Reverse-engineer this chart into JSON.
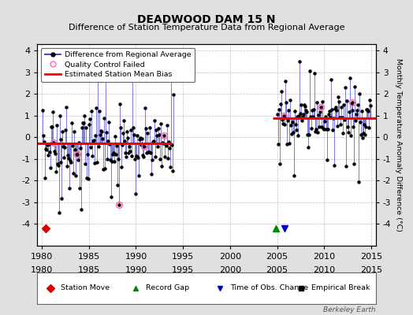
{
  "title": "DEADWOOD DAM 15 N",
  "subtitle": "Difference of Station Temperature Data from Regional Average",
  "ylabel_right": "Monthly Temperature Anomaly Difference (°C)",
  "xlim": [
    1979.5,
    2015.5
  ],
  "ylim": [
    -5.0,
    4.3
  ],
  "yticks": [
    -4,
    -3,
    -2,
    -1,
    0,
    1,
    2,
    3,
    4
  ],
  "xticks": [
    1980,
    1985,
    1990,
    1995,
    2000,
    2005,
    2010,
    2015
  ],
  "bias1_x_start": 1979.5,
  "bias1_x_end": 1993.8,
  "bias1_y": -0.28,
  "bias2_x_start": 2004.5,
  "bias2_x_end": 2015.5,
  "bias2_y": 0.88,
  "period1_start": 1980,
  "period1_end": 1993,
  "period2_start": 2005,
  "period2_end": 2014,
  "background_color": "#e0e0e0",
  "plot_bg_color": "#ffffff",
  "line_color": "#3333cc",
  "bias_color": "#ff0000",
  "dot_color": "#000000",
  "qc_color": "#ff69b4",
  "watermark": "Berkeley Earth",
  "grid_color": "#bbbbbb",
  "grid_style": "--"
}
